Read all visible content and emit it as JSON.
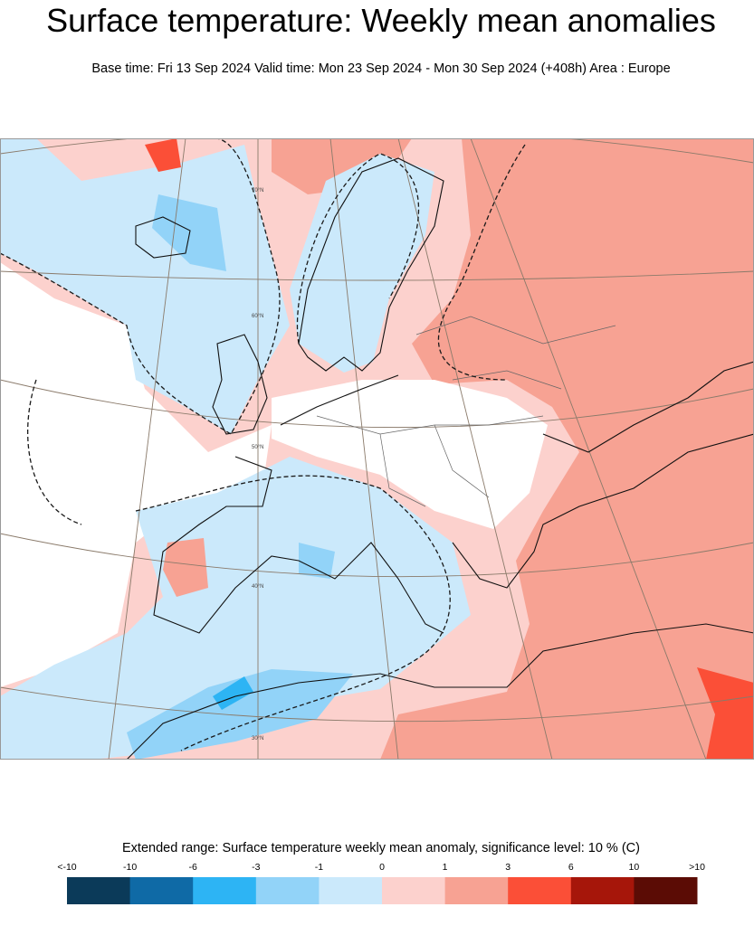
{
  "header": {
    "title": "Surface temperature: Weekly mean anomalies",
    "subtitle": "Base time: Fri 13 Sep 2024 Valid time: Mon 23 Sep 2024 - Mon 30 Sep 2024 (+408h) Area : Europe"
  },
  "map": {
    "latitude_labels": [
      "70°N",
      "60°N",
      "50°N",
      "40°N",
      "30°N"
    ]
  },
  "legend": {
    "caption": "Extended range: Surface temperature weekly mean anomaly, significance level: 10 % (C)",
    "labels": [
      "<-10",
      "-10",
      "-6",
      "-3",
      "-1",
      "0",
      "1",
      "3",
      "6",
      "10",
      ">10"
    ],
    "colors": [
      "#0b3a59",
      "#0f6aa6",
      "#2db4f4",
      "#92d3f8",
      "#cbe9fb",
      "#fcd1cd",
      "#f7a293",
      "#fb4f37",
      "#a6160a",
      "#5b0c05"
    ]
  }
}
